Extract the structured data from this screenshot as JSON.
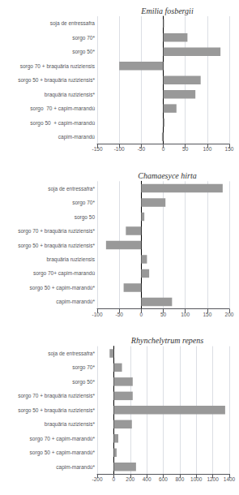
{
  "chart_data": [
    {
      "type": "bar",
      "orientation": "horizontal",
      "title": "Emilia fosbergii",
      "categories": [
        "soja de entressafra",
        "sorgo 70*",
        "sorgo 50*",
        "sorgo 70 + braquäria ruziziensis",
        "sorgo 50 + braquäria ruziziensis*",
        "braquäria ruziziensis*",
        "sorgo  70 + capim-marandú",
        "sorgo 50  + capim-marandú",
        "capim-marandú"
      ],
      "values": [
        2,
        55,
        130,
        -100,
        85,
        73,
        30,
        3,
        -3
      ],
      "color": "#999999",
      "xlim": [
        -150,
        150
      ],
      "xticks": [
        -150,
        -100,
        -50,
        0,
        50,
        100,
        150
      ],
      "grid": true
    },
    {
      "type": "bar",
      "orientation": "horizontal",
      "title": "Chamaesyce hirta",
      "categories": [
        "soja de entressafra*",
        "sorgo 70*",
        "sorgo 50",
        "sorgo 70 + braquäria ruziziensis*",
        "sorgo 50 + braquäria ruziziensis*",
        "braquäria ruziziensis",
        "sorgo 70+ capim-marandú",
        "sorgo 50 + capim-marandú*",
        "capim-marandú*"
      ],
      "values": [
        185,
        55,
        7,
        -35,
        -80,
        13,
        18,
        -40,
        70
      ],
      "color": "#999999",
      "xlim": [
        -100,
        200
      ],
      "xticks": [
        -100,
        -50,
        0,
        50,
        100,
        150,
        200
      ],
      "grid": true
    },
    {
      "type": "bar",
      "orientation": "horizontal",
      "title": "Rhynchelytrum repens",
      "categories": [
        "soja de entressafra*",
        "sorgo 70*",
        "sorgo 50*",
        "sorgo 70 + braquäria ruziziensis*",
        "sorgo 50 + braquäria ruziziensis*",
        "braquäria ruziziensis*",
        "sorgo 70 + capim-marandú*",
        "sorgo 50 + capim-marandú*",
        "capim-marandú*"
      ],
      "values": [
        -50,
        100,
        230,
        230,
        1350,
        220,
        55,
        35,
        270
      ],
      "color": "#999999",
      "xlim": [
        -200,
        1400
      ],
      "xticks": [
        -200,
        0,
        200,
        400,
        600,
        800,
        1000,
        1200,
        1400
      ],
      "grid": true
    }
  ]
}
